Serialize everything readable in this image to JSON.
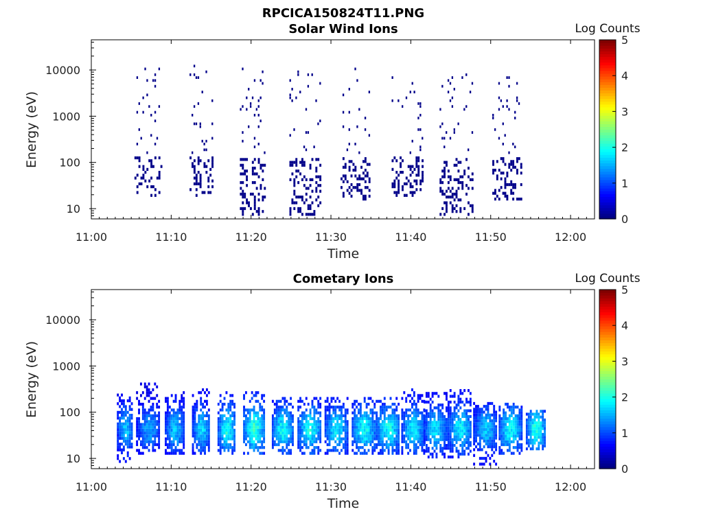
{
  "figure": {
    "title": "RPCICA150824T11.PNG"
  },
  "chart_data": [
    {
      "type": "heatmap",
      "title": "Solar Wind Ions",
      "xlabel": "Time",
      "ylabel": "Energy (eV)",
      "x_ticks": [
        "11:00",
        "11:10",
        "11:20",
        "11:30",
        "11:40",
        "11:50",
        "12:00"
      ],
      "x_range_minutes": [
        0,
        63
      ],
      "y_scale": "log",
      "y_ticks": [
        "10",
        "100",
        "1000",
        "10000"
      ],
      "y_range": [
        6,
        45000
      ],
      "colorbar": {
        "title": "Log Counts",
        "ticks": [
          "0",
          "1",
          "2",
          "3",
          "4",
          "5"
        ],
        "range": [
          0,
          5
        ],
        "colormap": "jet"
      },
      "bursts": [
        {
          "t_start": 5.4,
          "t_end": 8.8,
          "dense_low_E": [
            18,
            120
          ],
          "sparse_high_E": [
            150,
            13000
          ],
          "log_counts": 0.05
        },
        {
          "t_start": 12.3,
          "t_end": 15.2,
          "dense_low_E": [
            18,
            120
          ],
          "sparse_high_E": [
            150,
            12000
          ],
          "log_counts": 0.05
        },
        {
          "t_start": 18.6,
          "t_end": 21.8,
          "dense_low_E": [
            7,
            120
          ],
          "sparse_high_E": [
            150,
            11000
          ],
          "log_counts": 0.05
        },
        {
          "t_start": 24.8,
          "t_end": 28.6,
          "dense_low_E": [
            7,
            120
          ],
          "sparse_high_E": [
            150,
            10000
          ],
          "log_counts": 0.05
        },
        {
          "t_start": 31.2,
          "t_end": 34.8,
          "dense_low_E": [
            15,
            120
          ],
          "sparse_high_E": [
            150,
            11000
          ],
          "log_counts": 0.05
        },
        {
          "t_start": 37.6,
          "t_end": 41.5,
          "dense_low_E": [
            18,
            120
          ],
          "sparse_high_E": [
            150,
            8000
          ],
          "log_counts": 0.05
        },
        {
          "t_start": 43.6,
          "t_end": 47.8,
          "dense_low_E": [
            7,
            120
          ],
          "sparse_high_E": [
            150,
            7500
          ],
          "log_counts": 0.05
        },
        {
          "t_start": 50.2,
          "t_end": 53.8,
          "dense_low_E": [
            15,
            120
          ],
          "sparse_high_E": [
            150,
            7000
          ],
          "log_counts": 0.05
        }
      ]
    },
    {
      "type": "heatmap",
      "title": "Cometary Ions",
      "xlabel": "Time",
      "ylabel": "Energy (eV)",
      "x_ticks": [
        "11:00",
        "11:10",
        "11:20",
        "11:30",
        "11:40",
        "11:50",
        "12:00"
      ],
      "x_range_minutes": [
        0,
        63
      ],
      "y_scale": "log",
      "y_ticks": [
        "10",
        "100",
        "1000",
        "10000"
      ],
      "y_range": [
        6,
        45000
      ],
      "colorbar": {
        "title": "Log Counts",
        "ticks": [
          "0",
          "1",
          "2",
          "3",
          "4",
          "5"
        ],
        "range": [
          0,
          5
        ],
        "colormap": "jet"
      },
      "bursts": [
        {
          "t_start": 3.2,
          "t_end": 5.2,
          "energy_range": [
            8,
            250
          ],
          "peak_energy": 40,
          "peak_log_counts": 1.6
        },
        {
          "t_start": 5.6,
          "t_end": 8.6,
          "energy_range": [
            12,
            400
          ],
          "peak_energy": 40,
          "peak_log_counts": 1.4
        },
        {
          "t_start": 9.2,
          "t_end": 11.6,
          "energy_range": [
            12,
            250
          ],
          "peak_energy": 40,
          "peak_log_counts": 1.6
        },
        {
          "t_start": 12.6,
          "t_end": 14.8,
          "energy_range": [
            12,
            300
          ],
          "peak_energy": 40,
          "peak_log_counts": 1.7
        },
        {
          "t_start": 15.8,
          "t_end": 18.0,
          "energy_range": [
            12,
            250
          ],
          "peak_energy": 40,
          "peak_log_counts": 2.0
        },
        {
          "t_start": 19.0,
          "t_end": 21.6,
          "energy_range": [
            12,
            250
          ],
          "peak_energy": 40,
          "peak_log_counts": 2.1
        },
        {
          "t_start": 22.6,
          "t_end": 25.2,
          "energy_range": [
            12,
            200
          ],
          "peak_energy": 40,
          "peak_log_counts": 1.9
        },
        {
          "t_start": 25.8,
          "t_end": 28.8,
          "energy_range": [
            12,
            200
          ],
          "peak_energy": 40,
          "peak_log_counts": 1.9
        },
        {
          "t_start": 29.2,
          "t_end": 32.0,
          "energy_range": [
            12,
            200
          ],
          "peak_energy": 40,
          "peak_log_counts": 1.8
        },
        {
          "t_start": 32.6,
          "t_end": 35.6,
          "energy_range": [
            12,
            200
          ],
          "peak_energy": 40,
          "peak_log_counts": 1.9
        },
        {
          "t_start": 35.6,
          "t_end": 38.6,
          "energy_range": [
            12,
            200
          ],
          "peak_energy": 40,
          "peak_log_counts": 1.9
        },
        {
          "t_start": 38.8,
          "t_end": 41.6,
          "energy_range": [
            12,
            300
          ],
          "peak_energy": 40,
          "peak_log_counts": 1.8
        },
        {
          "t_start": 41.6,
          "t_end": 44.4,
          "energy_range": [
            10,
            250
          ],
          "peak_energy": 40,
          "peak_log_counts": 1.7
        },
        {
          "t_start": 44.6,
          "t_end": 47.6,
          "energy_range": [
            10,
            300
          ],
          "peak_energy": 40,
          "peak_log_counts": 1.8
        },
        {
          "t_start": 47.8,
          "t_end": 50.8,
          "energy_range": [
            7,
            150
          ],
          "peak_energy": 40,
          "peak_log_counts": 1.6
        },
        {
          "t_start": 51.0,
          "t_end": 53.8,
          "energy_range": [
            12,
            150
          ],
          "peak_energy": 40,
          "peak_log_counts": 1.9
        },
        {
          "t_start": 54.4,
          "t_end": 56.8,
          "energy_range": [
            15,
            100
          ],
          "peak_energy": 40,
          "peak_log_counts": 2.0
        }
      ]
    }
  ]
}
